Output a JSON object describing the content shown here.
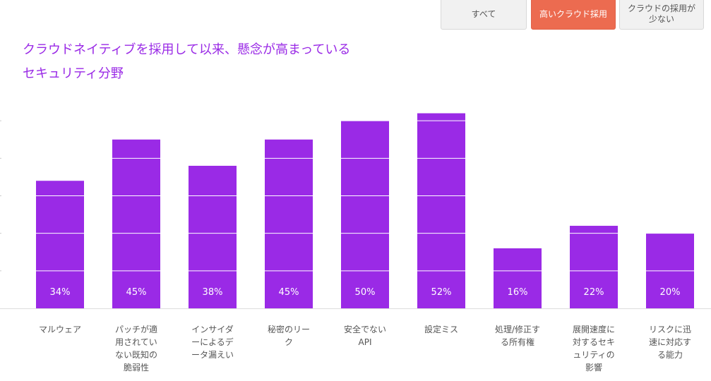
{
  "filter_tabs": [
    {
      "label": "すべて",
      "active": false
    },
    {
      "label": "高いクラウド採用",
      "active": true
    },
    {
      "label": "クラウドの採用が少ない",
      "active": false
    }
  ],
  "colors": {
    "bar": "#9a2ae6",
    "title": "#9a2ae6",
    "grid": "#ffffff",
    "axis": "#dddddd",
    "active_tab": "#ec6b50"
  },
  "chart_data": {
    "type": "bar",
    "title": "クラウドネイティブを採用して以来、懸念が高まっているセキュリティ分野",
    "categories": [
      "マルウェア",
      "パッチが適用されていない既知の脆弱性",
      "インサイダーによるデータ漏えい",
      "秘密のリーク",
      "安全でないAPI",
      "設定ミス",
      "処理/修正する所有権",
      "展開速度に対するセキュリティの影響",
      "リスクに迅速に対応する能力"
    ],
    "category_lines": [
      [
        "マルウェア"
      ],
      [
        "パッチが適",
        "用されてい",
        "ない既知の",
        "脆弱性"
      ],
      [
        "インサイダ",
        "ーによるデ",
        "ータ漏えい"
      ],
      [
        "秘密のリー",
        "ク"
      ],
      [
        "安全でない",
        "API"
      ],
      [
        "設定ミス"
      ],
      [
        "処理/修正す",
        "る所有権"
      ],
      [
        "展開速度に",
        "対するセキ",
        "ュリティの",
        "影響"
      ],
      [
        "リスクに迅",
        "速に対応す",
        "る能力"
      ]
    ],
    "values": [
      34,
      45,
      38,
      45,
      50,
      52,
      16,
      22,
      20
    ],
    "data_labels": [
      "34%",
      "45%",
      "38%",
      "45%",
      "50%",
      "52%",
      "16%",
      "22%",
      "20%"
    ],
    "ylim": [
      0,
      60
    ],
    "grid": true,
    "gridlines": [
      0,
      10,
      20,
      30,
      40,
      50
    ]
  }
}
